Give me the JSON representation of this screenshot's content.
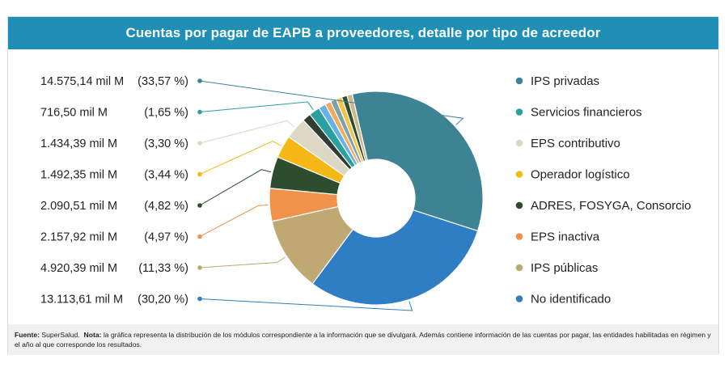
{
  "title": "Cuentas por pagar de EAPB a proveedores, detalle por tipo de acreedor",
  "footer": {
    "source_label": "Fuente:",
    "source_text": "SuperSalud.",
    "note_label": "Nota:",
    "note_text": "la gráfica representa la distribución de los módulos correspondiente a la información que se divulgará. Además contiene información de las cuentas por pagar, las entidades habilitadas en régimen y el año al que corresponde los resultados."
  },
  "chart_data": {
    "type": "pie",
    "subtype": "donut",
    "title": "Cuentas por pagar de EAPB a proveedores, detalle por tipo de acreedor",
    "legend_position": "right",
    "slices": [
      {
        "name": "IPS privadas",
        "value": 14575.14,
        "percent": 33.57,
        "color": "#3e8393",
        "label_value": "14.575,14 mil M",
        "label_pct": "(33,57 %)",
        "legend": true
      },
      {
        "name": "No identificado",
        "value": 13113.61,
        "percent": 30.2,
        "color": "#2f7ec4",
        "label_value": "13.113,61 mil M",
        "label_pct": "(30,20 %)",
        "legend": true
      },
      {
        "name": "IPS públicas",
        "value": 4920.39,
        "percent": 11.33,
        "color": "#bfa874",
        "label_value": "4.920,39 mil M",
        "label_pct": "(11,33 %)",
        "legend": true
      },
      {
        "name": "EPS inactiva",
        "value": 2157.92,
        "percent": 4.97,
        "color": "#f0924a",
        "label_value": "2.157,92 mil M",
        "label_pct": "(4,97 %)",
        "legend": true
      },
      {
        "name": "ADRES, FOSYGA, Consorcio",
        "value": 2090.51,
        "percent": 4.82,
        "color": "#2d4d2e",
        "label_value": "2.090,51 mil M",
        "label_pct": "(4,82 %)",
        "legend": true
      },
      {
        "name": "Operador logístico",
        "value": 1492.35,
        "percent": 3.44,
        "color": "#f6b814",
        "label_value": "1.492,35 mil M",
        "label_pct": "(3,44 %)",
        "legend": true
      },
      {
        "name": "EPS contributivo",
        "value": 1434.39,
        "percent": 3.3,
        "color": "#ddd7c6",
        "label_value": "1.434,39 mil M",
        "label_pct": "(3,30 %)",
        "legend": true
      },
      {
        "name": "",
        "value": null,
        "percent": 1.3,
        "color": "#2f3e30",
        "legend": false
      },
      {
        "name": "Servicios financieros",
        "value": 716.5,
        "percent": 1.65,
        "color": "#2aa0a3",
        "label_value": "716,50 mil M",
        "label_pct": "(1,65 %)",
        "legend": true
      },
      {
        "name": "",
        "value": null,
        "percent": 1.1,
        "color": "#66b2e3",
        "legend": false
      },
      {
        "name": "",
        "value": null,
        "percent": 0.9,
        "color": "#f4aa5a",
        "legend": false
      },
      {
        "name": "",
        "value": null,
        "percent": 0.9,
        "color": "#7aa0a8",
        "legend": false
      },
      {
        "name": "",
        "value": null,
        "percent": 0.9,
        "color": "#f2c24a",
        "legend": false
      },
      {
        "name": "",
        "value": null,
        "percent": 0.8,
        "color": "#2d4d2e",
        "legend": false
      },
      {
        "name": "",
        "value": null,
        "percent": 0.8,
        "color": "#c9b98a",
        "legend": false
      }
    ],
    "label_order": [
      "IPS privadas",
      "Servicios financieros",
      "EPS contributivo",
      "Operador logístico",
      "ADRES, FOSYGA, Consorcio",
      "EPS inactiva",
      "IPS públicas",
      "No identificado"
    ],
    "legend_order": [
      "IPS privadas",
      "Servicios financieros",
      "EPS contributivo",
      "Operador logístico",
      "ADRES, FOSYGA, Consorcio",
      "EPS inactiva",
      "IPS públicas",
      "No identificado"
    ]
  }
}
